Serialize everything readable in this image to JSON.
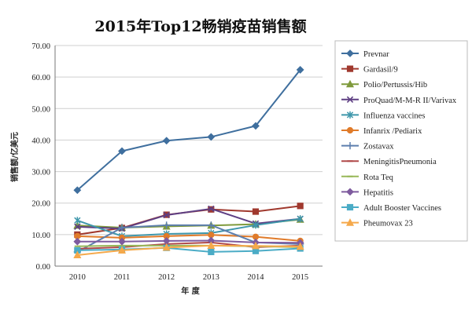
{
  "chart_data": {
    "type": "line",
    "title": "2015年Top12畅销疫苗销售额",
    "xlabel": "年 度",
    "ylabel": "销售额/亿美元",
    "x": [
      "2010",
      "2011",
      "2012",
      "2013",
      "2014",
      "2015"
    ],
    "ylim": [
      0,
      70
    ],
    "yticks": [
      "0.00",
      "10.00",
      "20.00",
      "30.00",
      "40.00",
      "50.00",
      "60.00",
      "70.00"
    ],
    "grid": "horizontal",
    "legend": "right",
    "series": [
      {
        "name": "Prevnar",
        "color": "#3F6F9E",
        "marker": "diamond",
        "values": [
          24.1,
          36.5,
          39.8,
          41.0,
          44.5,
          62.3
        ]
      },
      {
        "name": "Gardasil/9",
        "color": "#A0392E",
        "marker": "square",
        "values": [
          10.0,
          12.1,
          16.3,
          18.0,
          17.3,
          19.1
        ]
      },
      {
        "name": "Polio/Pertussis/Hib",
        "color": "#7F9A3C",
        "marker": "triangle",
        "values": [
          12.9,
          12.2,
          12.6,
          12.9,
          13.3,
          14.8
        ]
      },
      {
        "name": "ProQuad/M-M-R II/Varivax",
        "color": "#5E3F83",
        "marker": "x",
        "values": [
          12.5,
          11.9,
          16.2,
          18.2,
          13.5,
          15.0
        ]
      },
      {
        "name": "Influenza vaccines",
        "color": "#3F97AB",
        "marker": "star",
        "values": [
          14.5,
          9.5,
          10.2,
          10.5,
          13.0,
          15.0
        ]
      },
      {
        "name": "Infanrix /Pediarix",
        "color": "#E07B2A",
        "marker": "circle",
        "values": [
          9.5,
          9.0,
          9.5,
          9.9,
          9.3,
          8.0
        ]
      },
      {
        "name": "Zostavax",
        "color": "#5D7FAE",
        "marker": "plus",
        "values": [
          4.5,
          12.2,
          13.0,
          13.0,
          7.5,
          7.0
        ]
      },
      {
        "name": "MeningitisPneumonia",
        "color": "#B04A4A",
        "marker": "dash",
        "values": [
          5.5,
          6.0,
          7.0,
          7.5,
          6.0,
          6.5
        ]
      },
      {
        "name": "Rota Teq",
        "color": "#98B859",
        "marker": "dash",
        "values": [
          6.3,
          6.5,
          6.5,
          6.5,
          6.3,
          6.0
        ]
      },
      {
        "name": "Hepatitis",
        "color": "#7E5B9E",
        "marker": "diamond",
        "values": [
          7.8,
          7.8,
          8.0,
          8.1,
          7.5,
          7.4
        ]
      },
      {
        "name": "Adult Booster Vaccines",
        "color": "#4BACC6",
        "marker": "square",
        "values": [
          5.0,
          5.3,
          5.8,
          4.5,
          4.8,
          5.6
        ]
      },
      {
        "name": "Pheumovax 23",
        "color": "#F5A94B",
        "marker": "triangle",
        "values": [
          3.5,
          5.0,
          5.9,
          6.5,
          6.4,
          6.2
        ]
      }
    ]
  }
}
